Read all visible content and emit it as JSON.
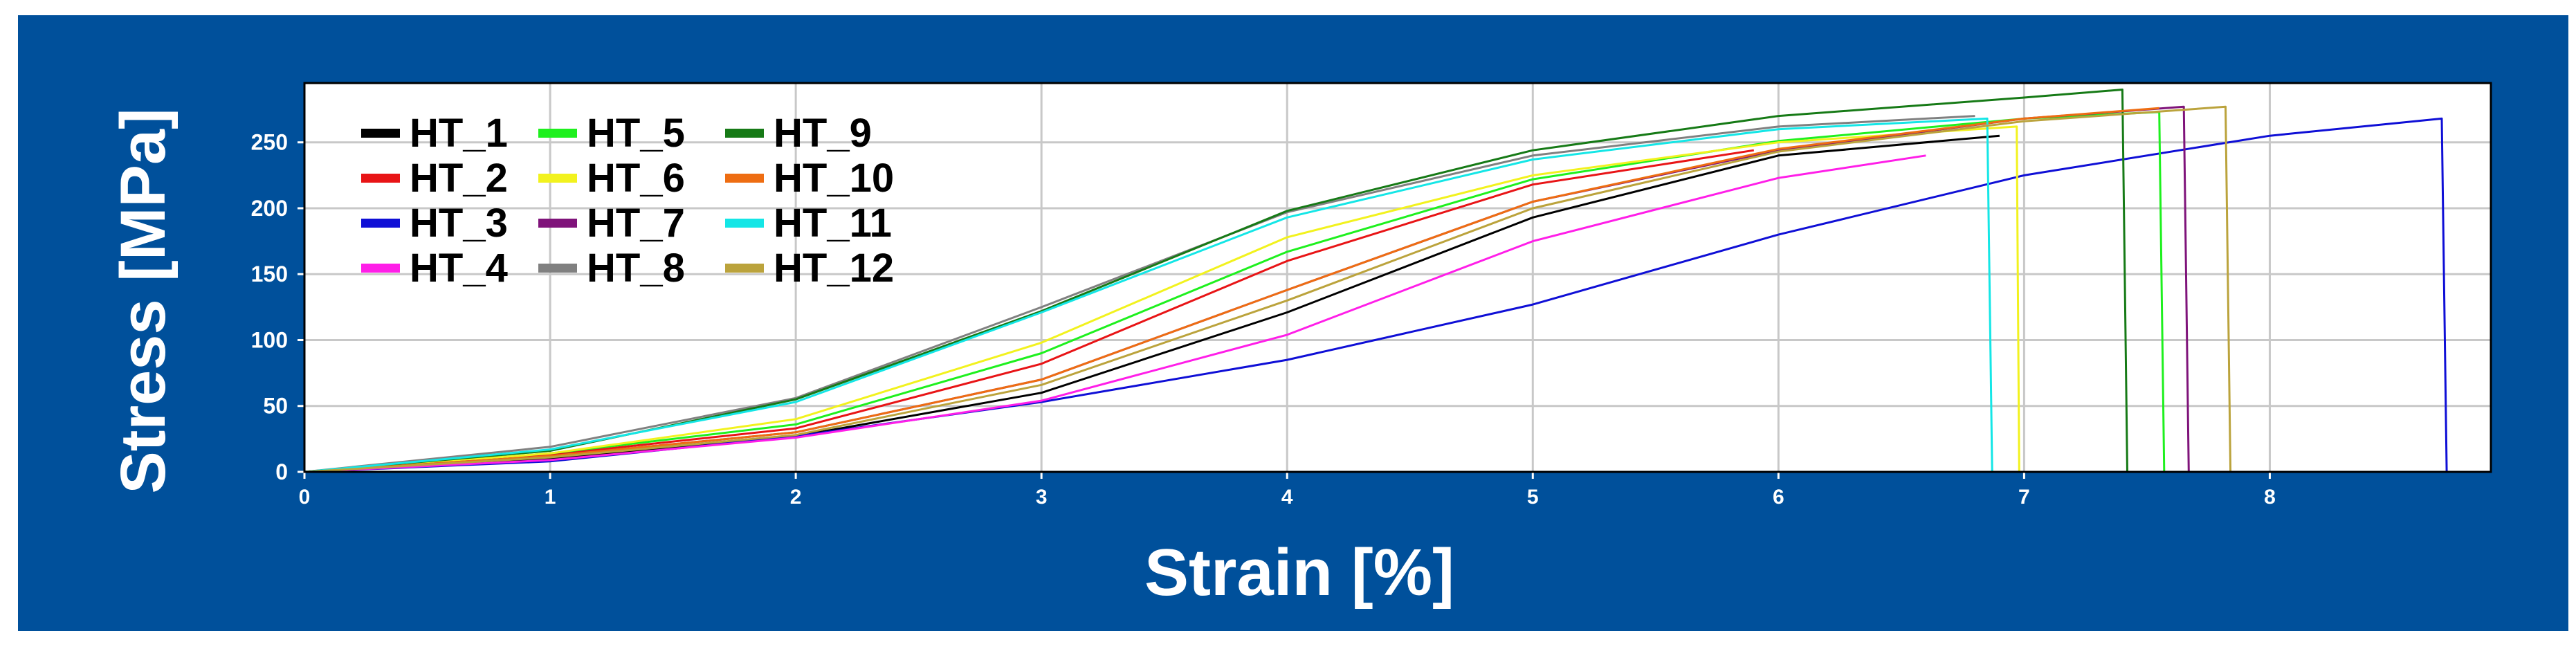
{
  "chart_data": {
    "type": "line",
    "xlabel": "Strain [%]",
    "ylabel": "Stress [MPa]",
    "xlim": [
      0,
      8.9
    ],
    "ylim": [
      0,
      295
    ],
    "xticks": [
      0,
      1,
      2,
      3,
      4,
      5,
      6,
      7,
      8
    ],
    "yticks": [
      0,
      50,
      100,
      150,
      200,
      250
    ],
    "grid": true,
    "legend_position": "top-left",
    "colors": {
      "background": "#00509b",
      "plot_background": "#ffffff",
      "grid": "#c8c8c8"
    },
    "series": [
      {
        "name": "HT_1",
        "color": "#000000",
        "x": [
          0,
          1,
          2,
          3,
          4,
          5,
          6,
          6.9
        ],
        "y": [
          0,
          10,
          27,
          60,
          121,
          193,
          240,
          255
        ]
      },
      {
        "name": "HT_2",
        "color": "#e81416",
        "x": [
          0,
          1,
          2,
          3,
          4,
          5,
          5.9
        ],
        "y": [
          0,
          13,
          33,
          82,
          160,
          218,
          244
        ]
      },
      {
        "name": "HT_3",
        "color": "#0f0fd6",
        "x": [
          0,
          1,
          2,
          3,
          4,
          5,
          6,
          7,
          8,
          8.7,
          8.72
        ],
        "y": [
          0,
          8,
          27,
          53,
          85,
          127,
          180,
          225,
          255,
          268,
          0
        ]
      },
      {
        "name": "HT_4",
        "color": "#ff1ee8",
        "x": [
          0,
          1,
          2,
          3,
          4,
          5,
          6,
          6.6
        ],
        "y": [
          0,
          9,
          26,
          54,
          104,
          175,
          223,
          240
        ]
      },
      {
        "name": "HT_5",
        "color": "#1ef01e",
        "x": [
          0,
          1,
          2,
          3,
          4,
          5,
          6,
          7,
          7.55,
          7.57
        ],
        "y": [
          0,
          14,
          36,
          90,
          167,
          222,
          251,
          268,
          273,
          0
        ]
      },
      {
        "name": "HT_6",
        "color": "#f2f21e",
        "x": [
          0,
          1,
          2,
          3,
          4,
          5,
          6,
          6.97,
          6.98
        ],
        "y": [
          0,
          14,
          40,
          98,
          178,
          225,
          250,
          262,
          0
        ]
      },
      {
        "name": "HT_7",
        "color": "#7f137a",
        "x": [
          0,
          1,
          2,
          3,
          4,
          5,
          6,
          7,
          7.65,
          7.67
        ],
        "y": [
          0,
          12,
          30,
          70,
          138,
          205,
          244,
          268,
          277,
          0
        ]
      },
      {
        "name": "HT_8",
        "color": "#808080",
        "x": [
          0,
          1,
          2,
          3,
          4,
          5,
          6,
          6.8
        ],
        "y": [
          0,
          19,
          56,
          125,
          197,
          240,
          262,
          270
        ]
      },
      {
        "name": "HT_9",
        "color": "#167a16",
        "x": [
          0,
          1,
          2,
          3,
          4,
          5,
          6,
          7,
          7.4,
          7.42
        ],
        "y": [
          0,
          16,
          55,
          122,
          198,
          244,
          270,
          284,
          290,
          0
        ]
      },
      {
        "name": "HT_10",
        "color": "#ee6d12",
        "x": [
          0,
          1,
          2,
          3,
          4,
          5,
          6,
          7,
          7.55
        ],
        "y": [
          0,
          12,
          30,
          70,
          138,
          205,
          245,
          268,
          276
        ]
      },
      {
        "name": "HT_11",
        "color": "#14e6e6",
        "x": [
          0,
          1,
          2,
          3,
          4,
          5,
          6,
          6.85,
          6.87
        ],
        "y": [
          0,
          17,
          53,
          121,
          193,
          237,
          260,
          268,
          0
        ]
      },
      {
        "name": "HT_12",
        "color": "#bba33c",
        "x": [
          0,
          1,
          2,
          3,
          4,
          5,
          6,
          7,
          7.82,
          7.84
        ],
        "y": [
          0,
          11,
          28,
          66,
          130,
          200,
          243,
          266,
          277,
          0
        ]
      }
    ]
  }
}
